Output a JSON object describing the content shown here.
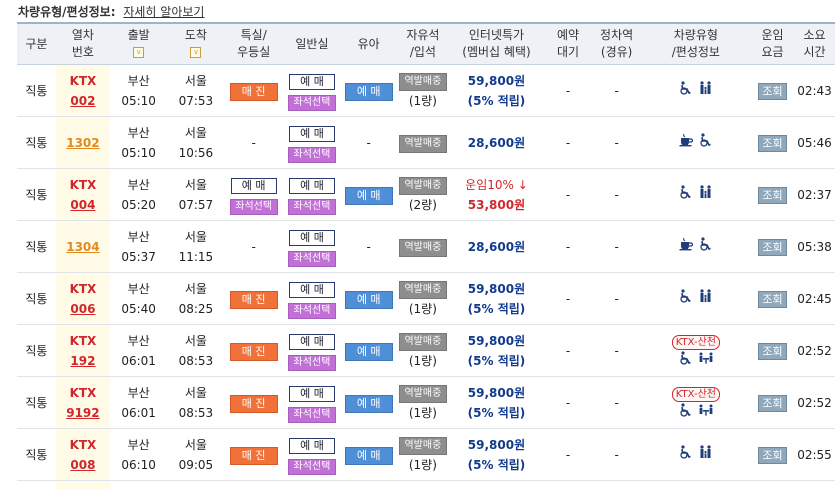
{
  "topline": {
    "label": "차량유형/편성정보:",
    "link": "자세히 알아보기"
  },
  "headers": {
    "type": "구분",
    "train_no": [
      "열차",
      "번호"
    ],
    "depart": "출발",
    "arrive": "도착",
    "special": [
      "특실/",
      "우등실"
    ],
    "general": "일반실",
    "infant": "유아",
    "free": [
      "자유석",
      "/입석"
    ],
    "inet": [
      "인터넷특가",
      "(멤버십 혜택)"
    ],
    "reserve_wait": [
      "예약",
      "대기"
    ],
    "via": [
      "정차역",
      "(경유)"
    ],
    "car_type": [
      "차량유형",
      "/편성정보"
    ],
    "fare": [
      "운임",
      "요금"
    ],
    "duration": [
      "소요",
      "시간"
    ]
  },
  "labels": {
    "sold_out": "매 진",
    "reserve": "예 매",
    "seat_select": "좌석선택",
    "standing": "역발매중",
    "view": "조회",
    "dash": "-",
    "chev": "v"
  },
  "rows": [
    {
      "type": "직통",
      "line1": "KTX",
      "line2": "002",
      "ktx": true,
      "dep_st": "부산",
      "dep_t": "05:10",
      "arr_st": "서울",
      "arr_t": "07:53",
      "special": "sold",
      "general": "res_seat",
      "infant": "res",
      "standing_cars": "(1량)",
      "price": "59,800원",
      "pct": "(5% 적립)",
      "disc": "",
      "reserve_wait": "-",
      "via": "-",
      "car": "wheel_fam",
      "ktxtag": "",
      "duration": "02:43"
    },
    {
      "type": "직통",
      "line1": "1302",
      "line2": "",
      "ktx": false,
      "dep_st": "부산",
      "dep_t": "05:10",
      "arr_st": "서울",
      "arr_t": "10:56",
      "special": "none",
      "general": "res_seat",
      "infant": "none",
      "standing_cars": "",
      "price": "28,600원",
      "pct": "",
      "disc": "",
      "reserve_wait": "-",
      "via": "-",
      "car": "cafe_wheel",
      "ktxtag": "",
      "duration": "05:46"
    },
    {
      "type": "직통",
      "line1": "KTX",
      "line2": "004",
      "ktx": true,
      "dep_st": "부산",
      "dep_t": "05:20",
      "arr_st": "서울",
      "arr_t": "07:57",
      "special": "res_seat",
      "general": "res_seat",
      "infant": "res",
      "standing_cars": "(2량)",
      "price": "53,800원",
      "pct": "",
      "disc": "운임10% ↓",
      "reserve_wait": "-",
      "via": "-",
      "car": "wheel_fam",
      "ktxtag": "",
      "duration": "02:37"
    },
    {
      "type": "직통",
      "line1": "1304",
      "line2": "",
      "ktx": false,
      "dep_st": "부산",
      "dep_t": "05:37",
      "arr_st": "서울",
      "arr_t": "11:15",
      "special": "none",
      "general": "res_seat",
      "infant": "none",
      "standing_cars": "",
      "price": "28,600원",
      "pct": "",
      "disc": "",
      "reserve_wait": "-",
      "via": "-",
      "car": "cafe_wheel",
      "ktxtag": "",
      "duration": "05:38"
    },
    {
      "type": "직통",
      "line1": "KTX",
      "line2": "006",
      "ktx": true,
      "dep_st": "부산",
      "dep_t": "05:40",
      "arr_st": "서울",
      "arr_t": "08:25",
      "special": "sold",
      "general": "res_seat",
      "infant": "res",
      "standing_cars": "(1량)",
      "price": "59,800원",
      "pct": "(5% 적립)",
      "disc": "",
      "reserve_wait": "-",
      "via": "-",
      "car": "wheel_fam",
      "ktxtag": "",
      "duration": "02:45"
    },
    {
      "type": "직통",
      "line1": "KTX",
      "line2": "192",
      "ktx": true,
      "dep_st": "부산",
      "dep_t": "06:01",
      "arr_st": "서울",
      "arr_t": "08:53",
      "special": "sold",
      "general": "res_seat",
      "infant": "res",
      "standing_cars": "(1량)",
      "price": "59,800원",
      "pct": "(5% 적립)",
      "disc": "",
      "reserve_wait": "-",
      "via": "-",
      "car": "wheel_fam",
      "ktxtag": "KTX-산천",
      "duration": "02:52"
    },
    {
      "type": "직통",
      "line1": "KTX",
      "line2": "9192",
      "ktx": true,
      "dep_st": "부산",
      "dep_t": "06:01",
      "arr_st": "서울",
      "arr_t": "08:53",
      "special": "sold",
      "general": "res_seat",
      "infant": "res",
      "standing_cars": "(1량)",
      "price": "59,800원",
      "pct": "(5% 적립)",
      "disc": "",
      "reserve_wait": "-",
      "via": "-",
      "car": "wheel_fam",
      "ktxtag": "KTX-산천",
      "duration": "02:52"
    },
    {
      "type": "직통",
      "line1": "KTX",
      "line2": "008",
      "ktx": true,
      "dep_st": "부산",
      "dep_t": "06:10",
      "arr_st": "서울",
      "arr_t": "09:05",
      "special": "sold",
      "general": "res_seat",
      "infant": "res",
      "standing_cars": "(1량)",
      "price": "59,800원",
      "pct": "(5% 적립)",
      "disc": "",
      "reserve_wait": "-",
      "via": "-",
      "car": "wheel_fam",
      "ktxtag": "",
      "duration": "02:55"
    }
  ],
  "colors": {
    "ktx_red": "#d0272b",
    "mu_orange": "#e38a1e",
    "price_navy": "#123b8c",
    "header_bg": "#eef2f7",
    "sold_orange": "#f1713a",
    "reserve_blue": "#4f8fd8",
    "seat_purple": "#c170d6",
    "icon_navy": "#1f3d7a"
  }
}
